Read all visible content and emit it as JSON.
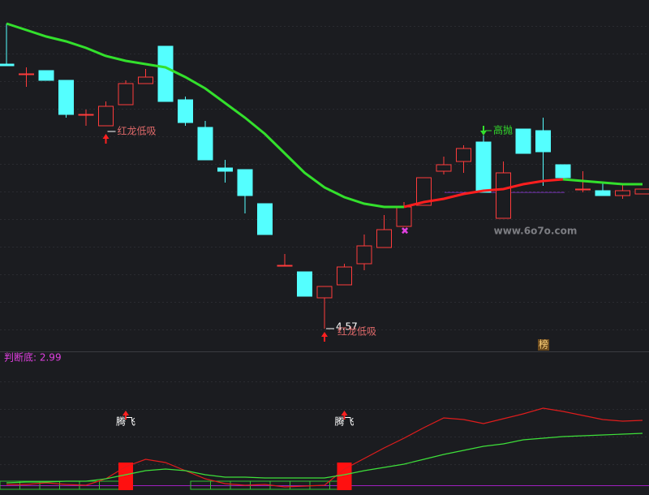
{
  "chart_data": [
    {
      "type": "candlestick",
      "ylim": [
        4.445,
        6.595
      ],
      "up_color": "#ff3b3b",
      "down_color": "#54ffff",
      "candles": [
        {
          "open": 6.2,
          "high": 6.45,
          "low": 6.19,
          "close": 6.19
        },
        {
          "open": 6.14,
          "high": 6.18,
          "low": 6.06,
          "close": 6.14
        },
        {
          "open": 6.16,
          "high": 6.16,
          "low": 6.1,
          "close": 6.1
        },
        {
          "open": 6.1,
          "high": 6.1,
          "low": 5.87,
          "close": 5.89
        },
        {
          "open": 5.89,
          "high": 5.92,
          "low": 5.82,
          "close": 5.89
        },
        {
          "open": 5.82,
          "high": 5.97,
          "low": 5.82,
          "close": 5.94
        },
        {
          "open": 5.95,
          "high": 6.1,
          "low": 5.95,
          "close": 6.08
        },
        {
          "open": 6.08,
          "high": 6.17,
          "low": 6.08,
          "close": 6.12
        },
        {
          "open": 6.31,
          "high": 6.31,
          "low": 5.97,
          "close": 5.97
        },
        {
          "open": 5.98,
          "high": 6.0,
          "low": 5.82,
          "close": 5.84
        },
        {
          "open": 5.81,
          "high": 5.85,
          "low": 5.61,
          "close": 5.61
        },
        {
          "open": 5.56,
          "high": 5.61,
          "low": 5.47,
          "close": 5.54
        },
        {
          "open": 5.55,
          "high": 5.55,
          "low": 5.28,
          "close": 5.39
        },
        {
          "open": 5.34,
          "high": 5.34,
          "low": 5.15,
          "close": 5.15
        },
        {
          "open": 4.96,
          "high": 5.03,
          "low": 4.96,
          "close": 4.96
        },
        {
          "open": 4.92,
          "high": 4.92,
          "low": 4.77,
          "close": 4.77
        },
        {
          "open": 4.76,
          "high": 4.83,
          "low": 4.57,
          "close": 4.83
        },
        {
          "open": 4.84,
          "high": 4.97,
          "low": 4.84,
          "close": 4.95
        },
        {
          "open": 4.97,
          "high": 5.15,
          "low": 4.93,
          "close": 5.08
        },
        {
          "open": 5.07,
          "high": 5.27,
          "low": 5.07,
          "close": 5.18
        },
        {
          "open": 5.2,
          "high": 5.35,
          "low": 5.2,
          "close": 5.32
        },
        {
          "open": 5.33,
          "high": 5.5,
          "low": 5.33,
          "close": 5.5
        },
        {
          "open": 5.54,
          "high": 5.63,
          "low": 5.52,
          "close": 5.58
        },
        {
          "open": 5.6,
          "high": 5.7,
          "low": 5.53,
          "close": 5.68
        },
        {
          "open": 5.72,
          "high": 5.76,
          "low": 5.41,
          "close": 5.41
        },
        {
          "open": 5.25,
          "high": 5.6,
          "low": 5.25,
          "close": 5.53
        },
        {
          "open": 5.8,
          "high": 5.8,
          "low": 5.65,
          "close": 5.65
        },
        {
          "open": 5.79,
          "high": 5.87,
          "low": 5.45,
          "close": 5.66
        },
        {
          "open": 5.58,
          "high": 5.58,
          "low": 5.5,
          "close": 5.5
        },
        {
          "open": 5.43,
          "high": 5.54,
          "low": 5.41,
          "close": 5.43
        },
        {
          "open": 5.42,
          "high": 5.47,
          "low": 5.39,
          "close": 5.39
        },
        {
          "open": 5.39,
          "high": 5.46,
          "low": 5.37,
          "close": 5.42
        },
        {
          "open": 5.4,
          "high": 5.43,
          "low": 5.4,
          "close": 5.43
        }
      ],
      "series": [
        {
          "color": "#33e02c",
          "values": [
            6.45,
            6.41,
            6.37,
            6.34,
            6.3,
            6.25,
            6.22,
            6.2,
            6.18,
            6.12,
            6.05,
            5.96,
            5.87,
            5.77,
            5.65,
            5.53,
            5.44,
            5.38,
            5.34,
            5.32,
            5.32,
            null,
            null,
            null,
            null,
            null,
            null,
            null,
            null,
            null,
            null,
            null,
            null
          ]
        },
        {
          "color": "#ff1e1e",
          "values": [
            null,
            null,
            null,
            null,
            null,
            null,
            null,
            null,
            null,
            null,
            null,
            null,
            null,
            null,
            null,
            null,
            null,
            null,
            null,
            null,
            5.32,
            5.35,
            5.37,
            5.4,
            5.42,
            5.43,
            5.46,
            5.48,
            5.49,
            null,
            null,
            null,
            null
          ]
        },
        {
          "color": "#33e02c",
          "values": [
            null,
            null,
            null,
            null,
            null,
            null,
            null,
            null,
            null,
            null,
            null,
            null,
            null,
            null,
            null,
            null,
            null,
            null,
            null,
            null,
            null,
            null,
            null,
            null,
            null,
            null,
            null,
            null,
            5.49,
            5.48,
            5.47,
            5.46,
            5.46
          ]
        }
      ],
      "annotations": [
        {
          "index": 5,
          "text": "红龙低吸",
          "color": "#e06a6a"
        },
        {
          "index": 16,
          "text": "红龙低吸",
          "color": "#e06a6a"
        },
        {
          "index": 24,
          "text": "高抛",
          "color": "#33e02c"
        }
      ],
      "badge": "榜",
      "watermark": "www.6o7o.com"
    },
    {
      "type": "line",
      "title": "判断底: 2.99",
      "ylim": [
        -1,
        16
      ],
      "series": [
        {
          "color": "#e01c1c",
          "values": [
            0.3,
            0.3,
            0.5,
            0.3,
            0.2,
            1.0,
            2.5,
            3.4,
            3.0,
            2.0,
            1.0,
            0.4,
            0.2,
            0.3,
            0,
            0.1,
            0.2,
            2.2,
            3.5,
            4.8,
            6.0,
            7.3,
            8.5,
            8.3,
            7.8,
            8.4,
            9.0,
            9.7,
            9.3,
            8.8,
            8.3,
            8.1,
            8.2
          ]
        },
        {
          "color": "#3ee03a",
          "values": [
            0.5,
            0.6,
            0.6,
            0.7,
            0.7,
            1.0,
            1.5,
            2.0,
            2.2,
            2.0,
            1.5,
            1.2,
            1.2,
            1.1,
            1.1,
            1.1,
            1.1,
            1.5,
            2.0,
            2.4,
            2.8,
            3.4,
            4.0,
            4.5,
            5.0,
            5.3,
            5.8,
            6.0,
            6.2,
            6.3,
            6.4,
            6.5,
            6.6
          ]
        }
      ],
      "signals": [
        {
          "index": 6,
          "label": "腾飞"
        },
        {
          "index": 17,
          "label": "腾飞"
        }
      ]
    }
  ]
}
